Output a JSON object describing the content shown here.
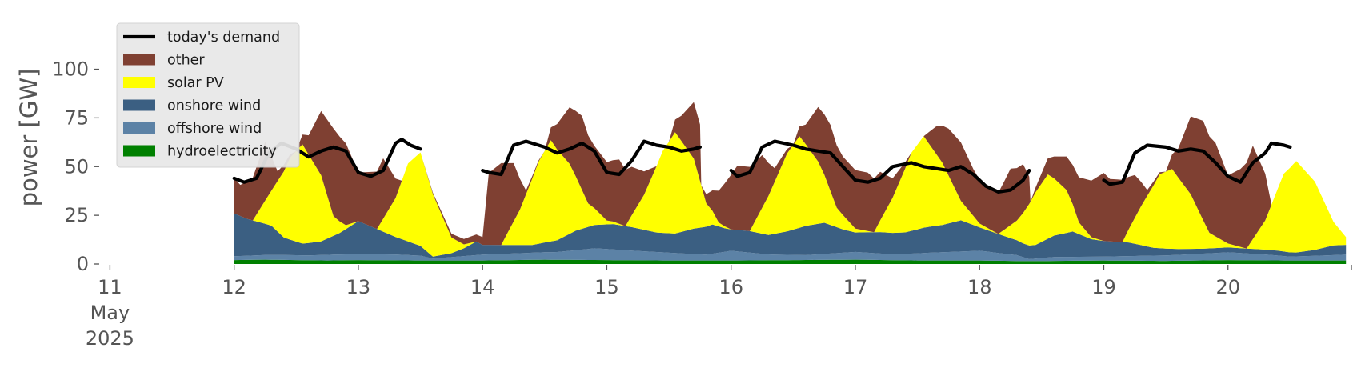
{
  "chart_data": {
    "type": "area",
    "stacked": true,
    "ylabel": "power [GW]",
    "ylim": [
      0,
      115
    ],
    "yticks": [
      0,
      25,
      50,
      75,
      100
    ],
    "xlim": [
      10.92,
      21.0
    ],
    "xticks": [
      {
        "value": 11,
        "lines": [
          "11",
          "May",
          "2025"
        ]
      },
      {
        "value": 12,
        "lines": [
          "12"
        ]
      },
      {
        "value": 13,
        "lines": [
          "13"
        ]
      },
      {
        "value": 14,
        "lines": [
          "14"
        ]
      },
      {
        "value": 15,
        "lines": [
          "15"
        ]
      },
      {
        "value": 16,
        "lines": [
          "16"
        ]
      },
      {
        "value": 17,
        "lines": [
          "17"
        ]
      },
      {
        "value": 18,
        "lines": [
          "18"
        ]
      },
      {
        "value": 19,
        "lines": [
          "19"
        ]
      },
      {
        "value": 20,
        "lines": [
          "20"
        ]
      }
    ],
    "grid": false,
    "legend_position": "top-left",
    "colors": {
      "today's demand": "#000000",
      "other": "#7f4032",
      "solar PV": "#ffff00",
      "onshore wind": "#3b5f82",
      "offshore wind": "#5c82a6",
      "hydroelectricity": "#008000"
    },
    "legend": [
      {
        "name": "today's demand",
        "kind": "line"
      },
      {
        "name": "other",
        "kind": "patch"
      },
      {
        "name": "solar PV",
        "kind": "patch"
      },
      {
        "name": "onshore wind",
        "kind": "patch"
      },
      {
        "name": "offshore wind",
        "kind": "patch"
      },
      {
        "name": "hydroelectricity",
        "kind": "patch"
      }
    ],
    "stack_order": [
      "hydroelectricity",
      "offshore wind",
      "onshore wind",
      "solar PV",
      "other"
    ],
    "series": [
      {
        "name": "hydroelectricity",
        "x": [
          12.0,
          12.25,
          12.5,
          12.75,
          13.0,
          13.5,
          14.0,
          14.5,
          15.0,
          15.5,
          16.0,
          16.5,
          17.0,
          17.5,
          18.0,
          18.4,
          19.0,
          19.5,
          20.0,
          20.5,
          20.95
        ],
        "values": [
          2,
          2.2,
          2,
          1.8,
          2,
          1.8,
          1.8,
          2.2,
          2,
          1.8,
          1.8,
          2,
          2.2,
          1.8,
          1.8,
          1.5,
          1.8,
          1.6,
          2,
          1.8,
          1.8
        ]
      },
      {
        "name": "offshore wind",
        "x": [
          12.0,
          12.3,
          12.6,
          12.8,
          13.0,
          13.3,
          13.5,
          13.6,
          14.0,
          14.3,
          14.6,
          14.9,
          15.2,
          15.5,
          15.8,
          16.0,
          16.3,
          16.6,
          17.0,
          17.3,
          17.6,
          18.0,
          18.3,
          18.4,
          18.6,
          19.0,
          19.3,
          19.6,
          20.0,
          20.3,
          20.5,
          20.95
        ],
        "values": [
          2,
          2.5,
          2.5,
          3,
          3,
          3,
          2.5,
          1,
          3,
          3.5,
          4,
          6,
          5,
          4,
          3,
          5,
          3,
          2.5,
          4,
          3,
          4,
          5,
          3,
          1,
          2,
          2,
          2.5,
          3,
          4,
          3,
          2,
          3
        ]
      },
      {
        "name": "onshore wind",
        "x": [
          12.0,
          12.1,
          12.3,
          12.4,
          12.55,
          12.7,
          12.85,
          13.0,
          13.15,
          13.3,
          13.5,
          13.6,
          13.75,
          13.85,
          13.95,
          14.0,
          14.2,
          14.4,
          14.6,
          14.75,
          14.9,
          15.05,
          15.2,
          15.4,
          15.55,
          15.7,
          15.85,
          15.95,
          16.0,
          16.15,
          16.3,
          16.45,
          16.6,
          16.75,
          16.9,
          17.0,
          17.2,
          17.4,
          17.55,
          17.7,
          17.85,
          18.0,
          18.2,
          18.35,
          18.45,
          18.6,
          18.75,
          18.9,
          19.0,
          19.2,
          19.4,
          19.6,
          19.8,
          20.0,
          20.2,
          20.4,
          20.55,
          20.7,
          20.85,
          20.95
        ],
        "values": [
          22,
          19,
          15,
          9,
          6,
          7,
          11,
          17,
          13,
          9,
          5,
          1,
          2,
          4,
          7,
          5,
          4.5,
          4,
          6,
          10,
          12,
          13,
          12,
          10,
          10,
          13,
          15,
          12,
          11,
          11,
          10,
          12,
          15,
          16,
          12,
          10,
          11,
          11,
          13,
          14,
          16,
          12,
          9,
          7,
          7,
          11,
          13,
          9,
          8,
          7,
          4,
          3,
          2.5,
          2.5,
          2.5,
          2.5,
          2,
          3,
          5,
          5
        ]
      },
      {
        "name": "solar PV",
        "x": [
          12.0,
          12.15,
          12.3,
          12.45,
          12.55,
          12.7,
          12.8,
          12.9,
          13.0,
          13.15,
          13.3,
          13.4,
          13.5,
          13.6,
          13.75,
          13.85,
          13.95,
          14.0,
          14.15,
          14.3,
          14.45,
          14.55,
          14.7,
          14.85,
          15.0,
          15.15,
          15.3,
          15.45,
          15.55,
          15.7,
          15.8,
          15.9,
          16.0,
          16.15,
          16.3,
          16.45,
          16.55,
          16.7,
          16.85,
          17.0,
          17.15,
          17.3,
          17.45,
          17.55,
          17.7,
          17.85,
          18.0,
          18.15,
          18.3,
          18.45,
          18.55,
          18.7,
          18.8,
          18.9,
          19.0,
          19.15,
          19.3,
          19.45,
          19.55,
          19.7,
          19.85,
          20.0,
          20.15,
          20.3,
          20.45,
          20.55,
          20.7,
          20.85,
          20.95
        ],
        "values": [
          0,
          0,
          18,
          42,
          51,
          34,
          10,
          2,
          0,
          0,
          20,
          40,
          48,
          32,
          8,
          2,
          0,
          0,
          0,
          18,
          42,
          52,
          36,
          12,
          2,
          0,
          18,
          42,
          52,
          36,
          12,
          2,
          0,
          0,
          20,
          40,
          47,
          32,
          10,
          2,
          0,
          18,
          40,
          47,
          32,
          10,
          2,
          0,
          10,
          27,
          33,
          22,
          6,
          1,
          0,
          0,
          20,
          38,
          41,
          28,
          8,
          2,
          0,
          15,
          40,
          47,
          35,
          12,
          4
        ]
      },
      {
        "name": "other",
        "x": [
          12.0,
          12.05,
          12.15,
          12.25,
          12.35,
          12.5,
          12.6,
          12.7,
          12.8,
          12.9,
          13.0,
          13.1,
          13.2,
          13.3,
          13.35,
          13.45,
          13.5,
          13.51,
          14.0,
          14.05,
          14.15,
          14.25,
          14.35,
          14.5,
          14.6,
          14.7,
          14.8,
          14.9,
          15.0,
          15.1,
          15.2,
          15.3,
          15.4,
          15.5,
          15.6,
          15.7,
          15.75,
          15.76,
          16.0,
          16.05,
          16.15,
          16.25,
          16.35,
          16.5,
          16.6,
          16.7,
          16.8,
          16.9,
          17.0,
          17.1,
          17.2,
          17.3,
          17.45,
          17.55,
          17.65,
          17.75,
          17.85,
          17.95,
          18.05,
          18.15,
          18.25,
          18.35,
          18.4,
          18.41,
          19.0,
          19.05,
          19.15,
          19.25,
          19.35,
          19.5,
          19.6,
          19.7,
          19.8,
          19.9,
          20.0,
          20.1,
          20.2,
          20.3,
          20.35,
          20.45,
          20.5,
          20.51
        ],
        "values": [
          18,
          16,
          22,
          30,
          5,
          0,
          10,
          33,
          45,
          42,
          25,
          28,
          31,
          10,
          0,
          0,
          0,
          0,
          4,
          37,
          42,
          30,
          2,
          0,
          13,
          29,
          38,
          32,
          30,
          33,
          25,
          12,
          0,
          0,
          13,
          29,
          29,
          0,
          28,
          33,
          33,
          27,
          7,
          0,
          10,
          28,
          34,
          30,
          30,
          30,
          25,
          10,
          0,
          0,
          14,
          24,
          30,
          24,
          21,
          21,
          29,
          25,
          14,
          0,
          35,
          32,
          32,
          22,
          3,
          0,
          15,
          40,
          51,
          48,
          35,
          40,
          48,
          24,
          0,
          0,
          0,
          0
        ]
      }
    ],
    "demand": {
      "name": "today's demand",
      "segments": [
        {
          "x": [
            12.0,
            12.08,
            12.18,
            12.28,
            12.38,
            12.5,
            12.6,
            12.7,
            12.8,
            12.9,
            13.0,
            13.1,
            13.2,
            13.3,
            13.35,
            13.42,
            13.5
          ],
          "y": [
            44,
            42,
            44,
            57,
            62,
            59,
            55,
            58,
            60,
            58,
            47,
            45,
            48,
            62,
            64,
            61,
            59
          ]
        },
        {
          "x": [
            14.0,
            14.05,
            14.15,
            14.25,
            14.35,
            14.5,
            14.6,
            14.7,
            14.8,
            14.9,
            15.0,
            15.1,
            15.2,
            15.3,
            15.4,
            15.5,
            15.6,
            15.7,
            15.75
          ],
          "y": [
            48,
            47,
            46,
            61,
            63,
            60,
            57,
            59,
            62,
            58,
            47,
            46,
            53,
            63,
            61,
            60,
            58,
            59,
            60
          ]
        },
        {
          "x": [
            16.0,
            16.05,
            16.15,
            16.25,
            16.35,
            16.5,
            16.6,
            16.7,
            16.8,
            16.9,
            17.0,
            17.1,
            17.2,
            17.3,
            17.45,
            17.55,
            17.65,
            17.75,
            17.85,
            17.95,
            18.05,
            18.15,
            18.25,
            18.35,
            18.4
          ],
          "y": [
            48,
            45,
            47,
            60,
            63,
            61,
            59,
            58,
            57,
            50,
            43,
            42,
            44,
            50,
            52,
            50,
            49,
            48,
            50,
            46,
            40,
            37,
            38,
            43,
            48
          ]
        },
        {
          "x": [
            19.0,
            19.05,
            19.15,
            19.25,
            19.35,
            19.5,
            19.6,
            19.7,
            19.8,
            19.9,
            20.0,
            20.1,
            20.2,
            20.3,
            20.35,
            20.45,
            20.5
          ],
          "y": [
            43,
            41,
            42,
            57,
            61,
            60,
            58,
            59,
            58,
            52,
            45,
            42,
            52,
            57,
            62,
            61,
            60
          ]
        }
      ]
    }
  }
}
